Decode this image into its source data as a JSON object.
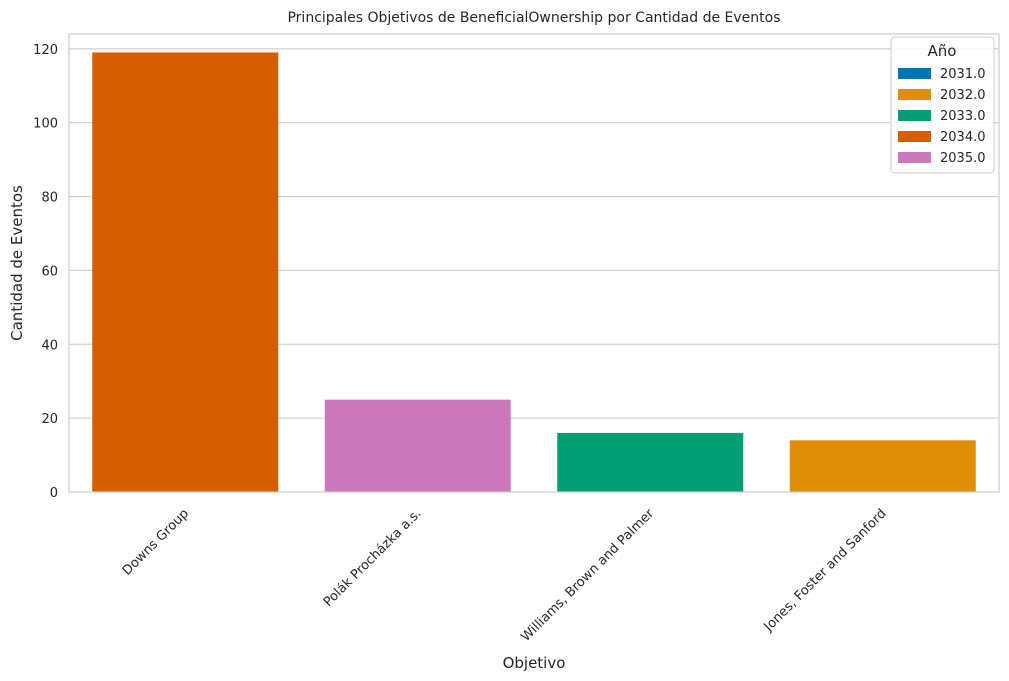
{
  "chart_data": {
    "type": "bar",
    "title": "Principales Objetivos de BeneficialOwnership  por Cantidad de Eventos",
    "xlabel": "Objetivo",
    "ylabel": "Cantidad de Eventos",
    "categories": [
      "Downs Group",
      "Polák Procházka a.s.",
      "Williams, Brown and Palmer",
      "Jones, Foster and Sanford"
    ],
    "values": [
      119,
      25,
      16,
      14
    ],
    "bar_years": [
      "2034.0",
      "2035.0",
      "2033.0",
      "2032.0"
    ],
    "ylim": [
      0,
      124
    ],
    "yticks": [
      0,
      20,
      40,
      60,
      80,
      100,
      120
    ],
    "grid": true,
    "legend": {
      "title": "Año",
      "placement": "top-right",
      "entries": [
        {
          "label": "2031.0",
          "color": "#0173b2"
        },
        {
          "label": "2032.0",
          "color": "#de8f05"
        },
        {
          "label": "2033.0",
          "color": "#029e73"
        },
        {
          "label": "2034.0",
          "color": "#d55e00"
        },
        {
          "label": "2035.0",
          "color": "#cc78bc"
        }
      ]
    }
  }
}
